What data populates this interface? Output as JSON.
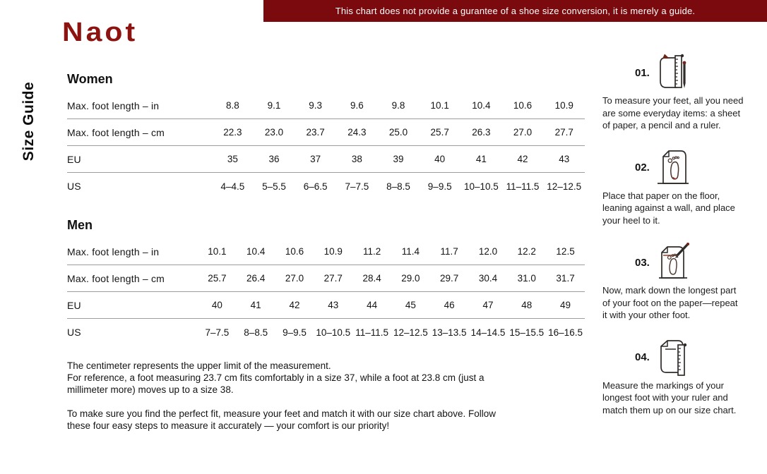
{
  "colors": {
    "banner_bg": "#7a0a0d",
    "brand_red": "#8c1310",
    "accent_red": "#6e2417",
    "rule_gray": "#9c9c9c"
  },
  "banner": {
    "text": "This chart does not provide a gurantee of a shoe size conversion, it is merely a guide."
  },
  "logo": {
    "text": "Naot"
  },
  "side_label": "Size Guide",
  "tables": {
    "women": {
      "heading": "Women",
      "rows": [
        {
          "label": "Max. foot length – in",
          "values": [
            "8.8",
            "9.1",
            "9.3",
            "9.6",
            "9.8",
            "10.1",
            "10.4",
            "10.6",
            "10.9"
          ]
        },
        {
          "label": "Max. foot length – cm",
          "values": [
            "22.3",
            "23.0",
            "23.7",
            "24.3",
            "25.0",
            "25.7",
            "26.3",
            "27.0",
            "27.7"
          ]
        },
        {
          "label": "EU",
          "values": [
            "35",
            "36",
            "37",
            "38",
            "39",
            "40",
            "41",
            "42",
            "43"
          ]
        },
        {
          "label": "US",
          "values": [
            "4–4.5",
            "5–5.5",
            "6–6.5",
            "7–7.5",
            "8–8.5",
            "9–9.5",
            "10–10.5",
            "11–11.5",
            "12–12.5"
          ]
        }
      ]
    },
    "men": {
      "heading": "Men",
      "rows": [
        {
          "label": "Max. foot length – in",
          "values": [
            "10.1",
            "10.4",
            "10.6",
            "10.9",
            "11.2",
            "11.4",
            "11.7",
            "12.0",
            "12.2",
            "12.5"
          ]
        },
        {
          "label": "Max. foot length – cm",
          "values": [
            "25.7",
            "26.4",
            "27.0",
            "27.7",
            "28.4",
            "29.0",
            "29.7",
            "30.4",
            "31.0",
            "31.7"
          ]
        },
        {
          "label": "EU",
          "values": [
            "40",
            "41",
            "42",
            "43",
            "44",
            "45",
            "46",
            "47",
            "48",
            "49"
          ]
        },
        {
          "label": "US",
          "values": [
            "7–7.5",
            "8–8.5",
            "9–9.5",
            "10–10.5",
            "11–11.5",
            "12–12.5",
            "13–13.5",
            "14–14.5",
            "15–15.5",
            "16–16.5"
          ]
        }
      ]
    }
  },
  "notes": {
    "p1": "The centimeter represents the upper limit of the measurement.\nFor reference, a foot measuring 23.7 cm fits comfortably in a size 37, while a foot at 23.8 cm (just a\nmillimeter more) moves up to a size 38.",
    "p2": "To make sure you find the perfect fit, measure your feet and match it with our size chart above. Follow\nthese four easy steps to measure it accurately — your comfort is our priority!"
  },
  "steps": [
    {
      "number": "01.",
      "icon": "paper-ruler-pencil-icon",
      "text": "To measure your feet, all you need\nare some everyday items: a sheet\nof paper, a pencil and a ruler."
    },
    {
      "number": "02.",
      "icon": "paper-footprint-icon",
      "text": "Place that paper on the floor,\nleaning against a wall, and place\nyour heel to it."
    },
    {
      "number": "03.",
      "icon": "paper-footprint-pencil-icon",
      "text": "Now, mark down the longest part\nof your foot on the paper—repeat\nit with your other foot."
    },
    {
      "number": "04.",
      "icon": "paper-ruler-icon",
      "text": "Measure the markings of your\nlongest foot with your ruler and\nmatch them up on our size chart."
    }
  ]
}
